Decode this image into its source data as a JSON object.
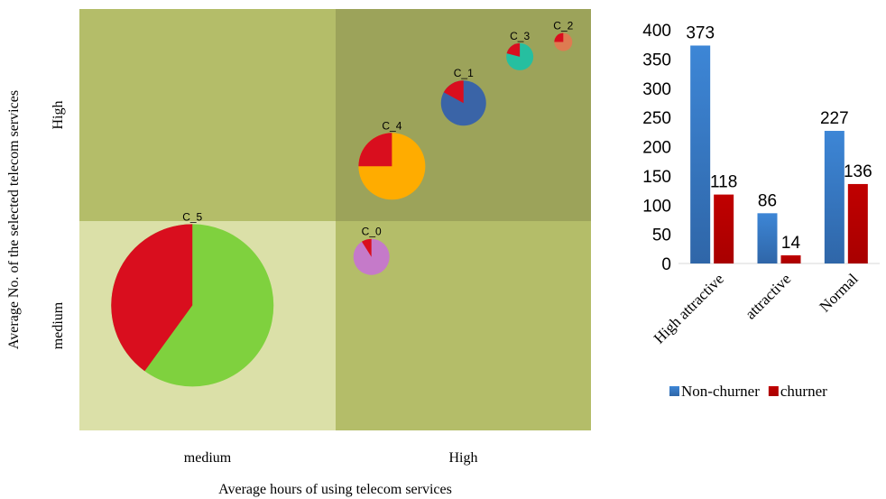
{
  "chart_data": [
    {
      "type": "scatter",
      "variant": "pie-bubble-quadrant",
      "xlabel": "Average hours of using telecom services",
      "ylabel": "Average No. of the selected  telecom services",
      "x_categories": [
        "medium",
        "High"
      ],
      "y_categories": [
        "medium",
        "High"
      ],
      "quadrant_colors": {
        "high_high": "#9ca35a",
        "medium_high": "#b4bd69",
        "medium_medium": "#dbe0a8",
        "high_medium": "#b4bd69"
      },
      "churn_color": "#d90e1e",
      "clusters": [
        {
          "name": "C_0",
          "x": 0.14,
          "y": -0.17,
          "size": 0.4,
          "churn_share": 0.09,
          "color": "#c57ac9"
        },
        {
          "name": "C_1",
          "x": 0.5,
          "y": 0.56,
          "size": 0.5,
          "churn_share": 0.17,
          "color": "#3a64a7"
        },
        {
          "name": "C_2",
          "x": 0.89,
          "y": 0.85,
          "size": 0.2,
          "churn_share": 0.25,
          "color": "#de7b51"
        },
        {
          "name": "C_3",
          "x": 0.72,
          "y": 0.78,
          "size": 0.3,
          "churn_share": 0.21,
          "color": "#26bfa0"
        },
        {
          "name": "C_4",
          "x": 0.22,
          "y": 0.26,
          "size": 0.74,
          "churn_share": 0.25,
          "color": "#ffac00"
        },
        {
          "name": "C_5",
          "x": -0.56,
          "y": -0.4,
          "size": 1.8,
          "churn_share": 0.4,
          "color": "#7fd13e"
        }
      ]
    },
    {
      "type": "bar",
      "categories": [
        "High attractive",
        "attractive",
        "Normal"
      ],
      "series": [
        {
          "name": "Non-churner",
          "values": [
            373,
            86,
            227
          ],
          "color": "#3d86d6"
        },
        {
          "name": "churner",
          "values": [
            118,
            14,
            136
          ],
          "color": "#c00000"
        }
      ],
      "ylim": [
        0,
        400
      ],
      "yticks": [
        0,
        50,
        100,
        150,
        200,
        250,
        300,
        350,
        400
      ],
      "legend_position": "bottom",
      "data_labels": true
    }
  ]
}
